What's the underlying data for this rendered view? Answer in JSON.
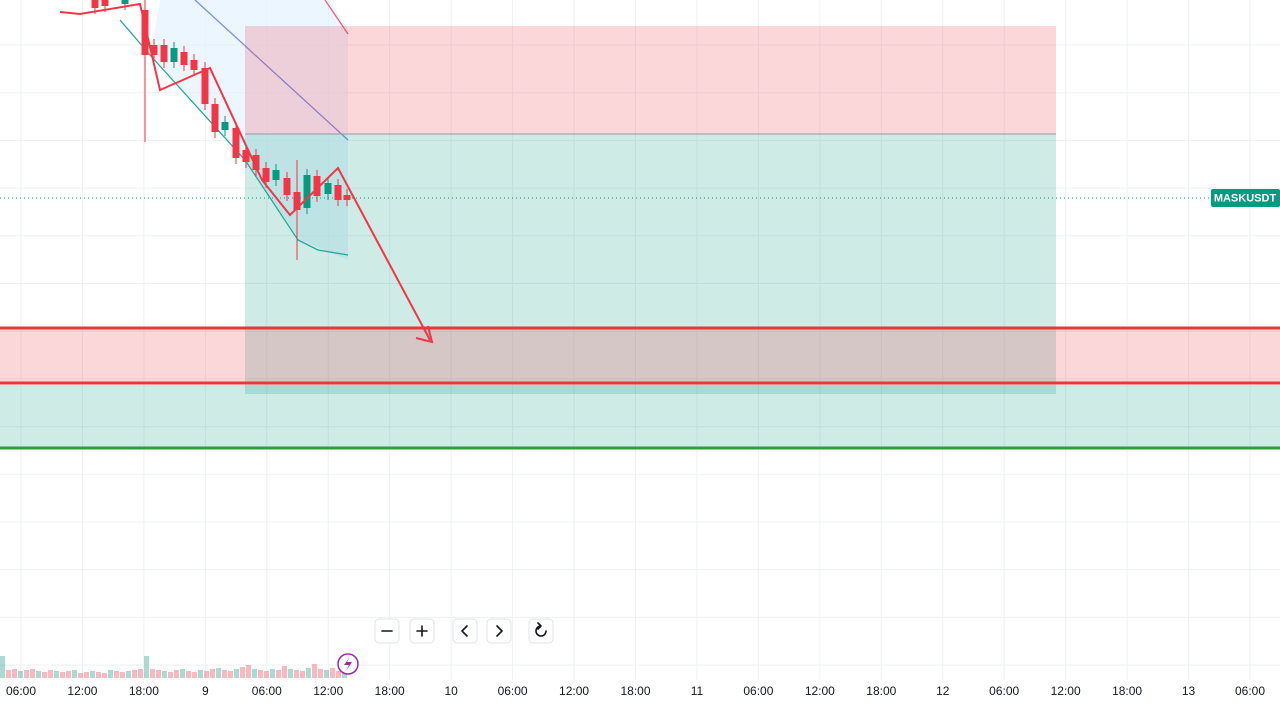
{
  "x_axis": {
    "labels": [
      "06:00",
      "12:00",
      "18:00",
      "9",
      "06:00",
      "12:00",
      "18:00",
      "10",
      "06:00",
      "12:00",
      "18:00",
      "11",
      "06:00",
      "12:00",
      "18:00",
      "12",
      "06:00",
      "12:00",
      "18:00",
      "13",
      "06:00"
    ]
  },
  "symbol_tag": "MASKUSDT"
}
